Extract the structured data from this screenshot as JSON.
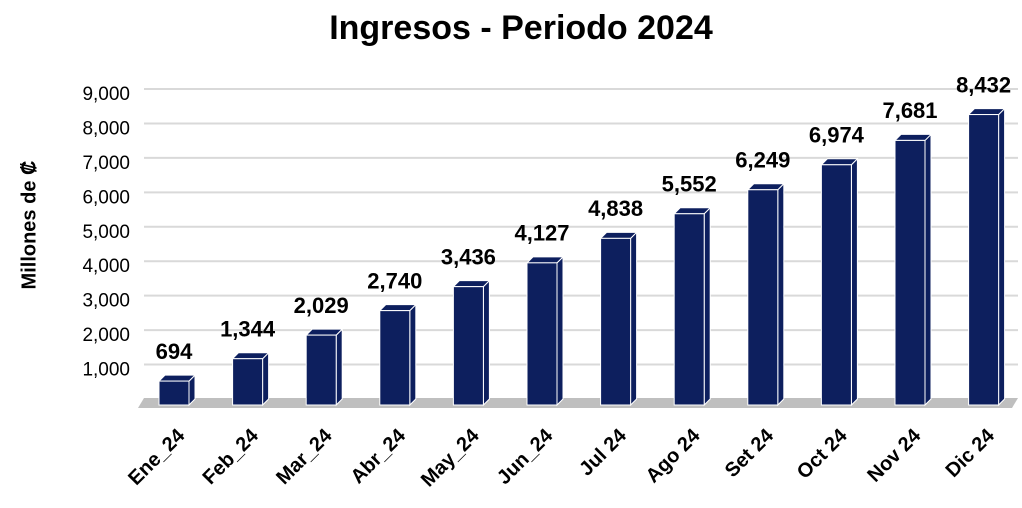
{
  "chart_data": {
    "type": "bar3d",
    "title": "Ingresos - Periodo 2024",
    "y_label": "Millones de ₡",
    "categories": [
      "Ene_24",
      "Feb_24",
      "Mar_24",
      "Abr_24",
      "May_24",
      "Jun_24",
      "Jul 24",
      "Ago 24",
      "Set 24",
      "Oct 24",
      "Nov 24",
      "Dic 24"
    ],
    "values": [
      694,
      1344,
      2029,
      2740,
      3436,
      4127,
      4838,
      5552,
      6249,
      6974,
      7681,
      8432
    ],
    "value_labels": [
      "694",
      "1,344",
      "2,029",
      "2,740",
      "3,436",
      "4,127",
      "4,838",
      "5,552",
      "6,249",
      "6,974",
      "7,681",
      "8,432"
    ],
    "color": "#0d1f5e",
    "ylim": [
      0,
      9000
    ],
    "yticks": [
      {
        "value": 1000,
        "label": "1,000"
      },
      {
        "value": 2000,
        "label": "2,000"
      },
      {
        "value": 3000,
        "label": "3,000"
      },
      {
        "value": 4000,
        "label": "4,000"
      },
      {
        "value": 5000,
        "label": "5,000"
      },
      {
        "value": 6000,
        "label": "6,000"
      },
      {
        "value": 7000,
        "label": "7,000"
      },
      {
        "value": 8000,
        "label": "8,000"
      },
      {
        "value": 9000,
        "label": "9,000"
      }
    ],
    "grid": true
  }
}
